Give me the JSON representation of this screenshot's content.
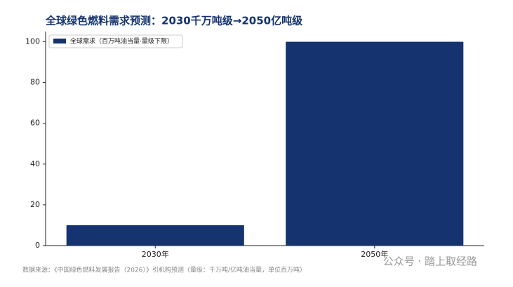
{
  "chart_data": {
    "type": "bar",
    "title": "全球绿色燃料需求预测：2030千万吨级→2050亿吨级",
    "categories": [
      "2030年",
      "2050年"
    ],
    "series": [
      {
        "name": "全球需求（百万吨油当量·量级下限）",
        "color": "#14336f",
        "values": [
          10,
          100
        ]
      }
    ],
    "ylim": [
      0,
      105
    ],
    "yticks": [
      0,
      20,
      40,
      60,
      80,
      100
    ],
    "legend": "upper left",
    "grid": false
  },
  "footnote": "数据来源：《中国绿色燃料发展报告（2026）》引机构预测（量级：千万吨/亿吨油当量，单位百万吨）",
  "watermark": "公众号 · 踏上取经路"
}
